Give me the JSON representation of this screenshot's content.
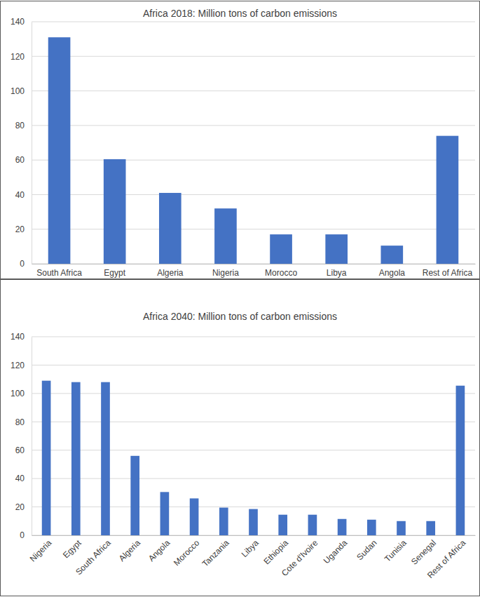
{
  "chart_data": [
    {
      "type": "bar",
      "title": "Africa 2018: Million tons of carbon emissions",
      "categories": [
        "South Africa",
        "Egypt",
        "Algeria",
        "Nigeria",
        "Morocco",
        "Libya",
        "Angola",
        "Rest of Africa"
      ],
      "values": [
        131,
        60.5,
        41,
        32,
        17,
        17,
        10.5,
        74
      ],
      "color": "#4472c4",
      "ylim": [
        0,
        140
      ],
      "yticks": [
        0,
        20,
        40,
        60,
        80,
        100,
        120,
        140
      ],
      "grid": true
    },
    {
      "type": "bar",
      "title": "Africa 2040: Million tons of carbon emissions",
      "categories": [
        "Nigeria",
        "Egypt",
        "South Africa",
        "Algeria",
        "Angola",
        "Morocco",
        "Tanzania",
        "Libya",
        "Ethiopia",
        "Cote d'Ivoire",
        "Uganda",
        "Sudan",
        "Tunisia",
        "Senegal",
        "Rest of Africa"
      ],
      "values": [
        109,
        108,
        108,
        56,
        30.5,
        26,
        19.5,
        18.5,
        14.5,
        14.5,
        11.5,
        11,
        10,
        10,
        105.5
      ],
      "color": "#4472c4",
      "ylim": [
        0,
        140
      ],
      "yticks": [
        0,
        20,
        40,
        60,
        80,
        100,
        120,
        140
      ],
      "grid": true
    }
  ]
}
